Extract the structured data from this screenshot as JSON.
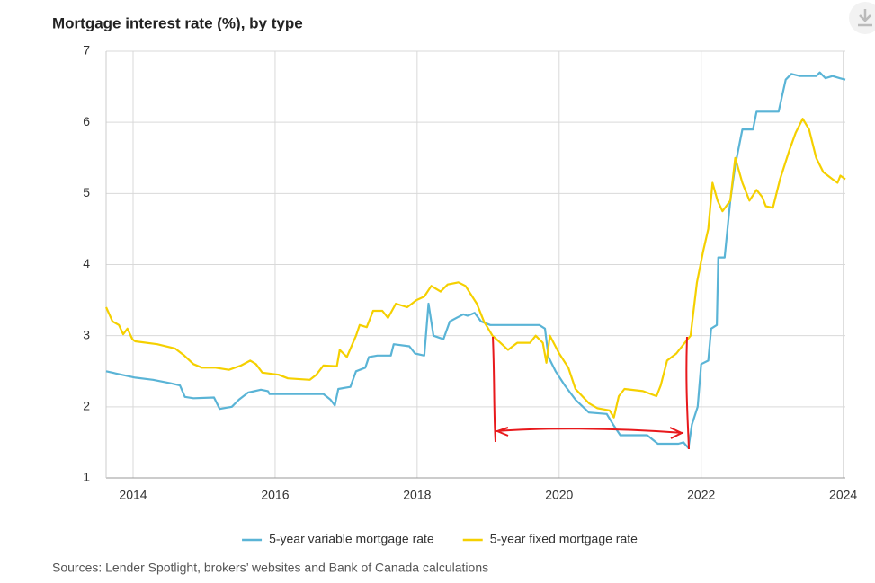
{
  "chart_data": {
    "type": "line",
    "title": "Mortgage interest rate (%), by type",
    "source": "Sources: Lender Spotlight, brokers’ websites and Bank of Canada calculations",
    "xlim": [
      2013.62,
      2024.03
    ],
    "xticks": [
      2014,
      2016,
      2018,
      2020,
      2022,
      2024
    ],
    "ylim": [
      1,
      7
    ],
    "yticks": [
      1,
      2,
      3,
      4,
      5,
      6,
      7
    ],
    "grid": true,
    "legend": "bottom",
    "series": [
      {
        "name": "5-year variable mortgage rate",
        "color": "#5ab4d6",
        "x": [
          2013.62,
          2013.84,
          2014.03,
          2014.28,
          2014.53,
          2014.66,
          2014.73,
          2014.85,
          2015.14,
          2015.22,
          2015.39,
          2015.49,
          2015.62,
          2015.8,
          2015.9,
          2015.92,
          2016.3,
          2016.68,
          2016.78,
          2016.84,
          2016.89,
          2017.06,
          2017.14,
          2017.27,
          2017.32,
          2017.44,
          2017.63,
          2017.67,
          2017.89,
          2017.97,
          2018.1,
          2018.16,
          2018.23,
          2018.37,
          2018.46,
          2018.65,
          2018.71,
          2018.81,
          2018.9,
          2019.03,
          2019.72,
          2019.8,
          2019.85,
          2019.95,
          2020.08,
          2020.23,
          2020.42,
          2020.67,
          2020.76,
          2020.86,
          2021.24,
          2021.39,
          2021.68,
          2021.75,
          2021.82,
          2021.87,
          2021.95,
          2022.0,
          2022.1,
          2022.14,
          2022.22,
          2022.24,
          2022.33,
          2022.41,
          2022.48,
          2022.58,
          2022.73,
          2022.78,
          2023.09,
          2023.19,
          2023.27,
          2023.39,
          2023.62,
          2023.67,
          2023.75,
          2023.85,
          2023.95,
          2024.03
        ],
        "values": [
          2.5,
          2.45,
          2.41,
          2.38,
          2.33,
          2.3,
          2.14,
          2.12,
          2.13,
          1.97,
          2.0,
          2.1,
          2.2,
          2.24,
          2.22,
          2.18,
          2.18,
          2.18,
          2.1,
          2.02,
          2.25,
          2.28,
          2.5,
          2.55,
          2.7,
          2.72,
          2.72,
          2.88,
          2.85,
          2.75,
          2.72,
          3.45,
          3.0,
          2.95,
          3.2,
          3.3,
          3.28,
          3.32,
          3.2,
          3.15,
          3.15,
          3.1,
          2.7,
          2.5,
          2.3,
          2.1,
          1.92,
          1.9,
          1.75,
          1.6,
          1.6,
          1.48,
          1.48,
          1.5,
          1.42,
          1.75,
          2.0,
          2.6,
          2.65,
          3.1,
          3.15,
          4.1,
          4.1,
          4.9,
          5.4,
          5.9,
          5.9,
          6.15,
          6.15,
          6.6,
          6.68,
          6.65,
          6.65,
          6.7,
          6.62,
          6.65,
          6.62,
          6.6
        ]
      },
      {
        "name": "5-year fixed mortgage rate",
        "color": "#f5d000",
        "x": [
          2013.62,
          2013.71,
          2013.8,
          2013.86,
          2013.92,
          2013.99,
          2014.03,
          2014.34,
          2014.59,
          2014.72,
          2014.85,
          2014.97,
          2015.16,
          2015.35,
          2015.52,
          2015.65,
          2015.73,
          2015.82,
          2016.05,
          2016.18,
          2016.49,
          2016.58,
          2016.68,
          2016.87,
          2016.91,
          2017.01,
          2017.14,
          2017.19,
          2017.29,
          2017.38,
          2017.51,
          2017.59,
          2017.7,
          2017.86,
          2017.99,
          2018.1,
          2018.2,
          2018.33,
          2018.43,
          2018.58,
          2018.68,
          2018.84,
          2018.94,
          2019.06,
          2019.15,
          2019.28,
          2019.41,
          2019.59,
          2019.67,
          2019.77,
          2019.82,
          2019.87,
          2020.0,
          2020.13,
          2020.23,
          2020.42,
          2020.54,
          2020.71,
          2020.77,
          2020.84,
          2020.92,
          2021.18,
          2021.37,
          2021.43,
          2021.52,
          2021.65,
          2021.77,
          2021.85,
          2021.94,
          2022.03,
          2022.1,
          2022.16,
          2022.23,
          2022.3,
          2022.41,
          2022.48,
          2022.58,
          2022.68,
          2022.78,
          2022.86,
          2022.91,
          2023.01,
          2023.11,
          2023.24,
          2023.33,
          2023.43,
          2023.52,
          2023.62,
          2023.72,
          2023.85,
          2023.92,
          2023.96,
          2024.03
        ],
        "values": [
          3.4,
          3.2,
          3.15,
          3.02,
          3.1,
          2.95,
          2.92,
          2.88,
          2.82,
          2.72,
          2.6,
          2.55,
          2.55,
          2.52,
          2.58,
          2.65,
          2.6,
          2.48,
          2.45,
          2.4,
          2.38,
          2.45,
          2.58,
          2.57,
          2.8,
          2.7,
          3.0,
          3.15,
          3.12,
          3.35,
          3.35,
          3.25,
          3.45,
          3.4,
          3.5,
          3.55,
          3.7,
          3.62,
          3.72,
          3.75,
          3.7,
          3.45,
          3.2,
          3.0,
          2.92,
          2.8,
          2.9,
          2.9,
          3.0,
          2.9,
          2.62,
          3.0,
          2.75,
          2.55,
          2.25,
          2.05,
          1.98,
          1.95,
          1.85,
          2.15,
          2.25,
          2.22,
          2.15,
          2.3,
          2.65,
          2.75,
          2.9,
          3.0,
          3.75,
          4.2,
          4.5,
          5.15,
          4.9,
          4.75,
          4.9,
          5.5,
          5.15,
          4.9,
          5.05,
          4.95,
          4.82,
          4.8,
          5.2,
          5.6,
          5.85,
          6.05,
          5.9,
          5.5,
          5.3,
          5.2,
          5.15,
          5.25,
          5.2
        ]
      }
    ]
  }
}
